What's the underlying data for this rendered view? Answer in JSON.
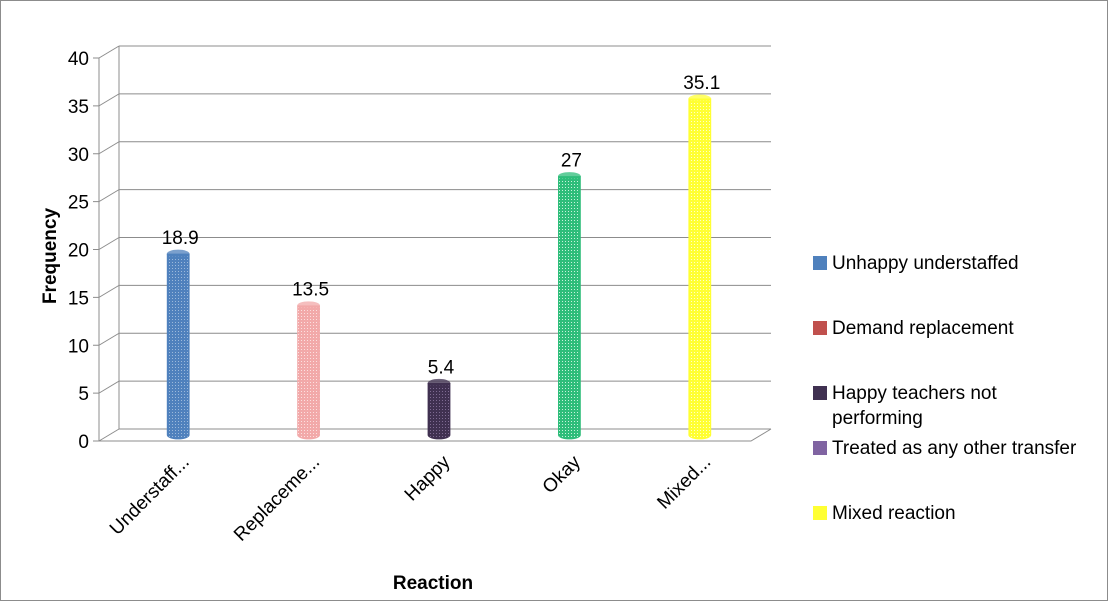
{
  "chart_data": {
    "type": "bar",
    "categories": [
      "Understaff...",
      "Replaceme...",
      "Happy",
      "Okay",
      "Mixed..."
    ],
    "values": [
      18.9,
      13.5,
      5.4,
      27,
      35.1
    ],
    "data_labels": [
      "18.9",
      "13.5",
      "5.4",
      "27",
      "35.1"
    ],
    "bar_colors": [
      "#4f81bd",
      "#f2a9a9",
      "#403151",
      "#2ebd7a",
      "#ffff33"
    ],
    "xlabel": "Reaction",
    "ylabel": "Frequency",
    "ylim": [
      0,
      40
    ],
    "yticks": [
      "0",
      "5",
      "10",
      "15",
      "20",
      "25",
      "30",
      "35",
      "40"
    ],
    "grid": true,
    "legend_position": "right",
    "legend": [
      {
        "label": "Unhappy understaffed",
        "color": "#4f81bd"
      },
      {
        "label": "Demand replacement",
        "color": "#c0504d"
      },
      {
        "label": "Happy teachers not performing",
        "color": "#403151"
      },
      {
        "label": "Treated as any other transfer",
        "color": "#8064a2"
      },
      {
        "label": "Mixed reaction",
        "color": "#ffff33"
      }
    ]
  }
}
